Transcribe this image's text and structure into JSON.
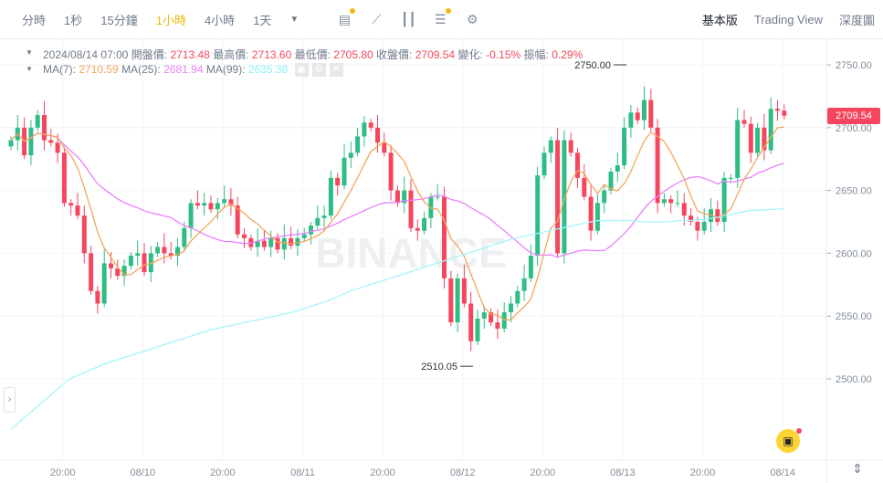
{
  "toolbar": {
    "intervals": [
      "分時",
      "1秒",
      "15分鐘",
      "1小時",
      "4小時",
      "1天"
    ],
    "active_interval": "1小時",
    "more_icon": "caret-down-icon",
    "tools": [
      "indicator-icon",
      "drawing-icon",
      "candle-type-icon",
      "settings-sliders-icon",
      "gear-icon"
    ],
    "views": [
      "基本版",
      "Trading View",
      "深度圖"
    ],
    "active_view": "基本版"
  },
  "info": {
    "datetime": "2024/08/14 07:00",
    "open_label": "開盤價:",
    "open": "2713.48",
    "high_label": "最高價:",
    "high": "2713.60",
    "low_label": "最低價:",
    "low": "2705.80",
    "close_label": "收盤價:",
    "close": "2709.54",
    "change_label": "變化:",
    "change": "-0.15%",
    "amp_label": "振幅:",
    "amp": "0.29%",
    "ma7_label": "MA(7):",
    "ma7": "2710.59",
    "ma25_label": "MA(25):",
    "ma25": "2681.94",
    "ma99_label": "MA(99):",
    "ma99": "2635.38"
  },
  "colors": {
    "up": "#2ebd85",
    "down": "#f6465d",
    "ma7": "#f5a55c",
    "ma25": "#ea80fc",
    "ma99": "#a5f5fa",
    "accent": "#f0b90b"
  },
  "watermark": "BINANCE",
  "current_price": "2709.54",
  "chart_data": {
    "type": "candlestick",
    "interval": "1h",
    "closes": [
      2690,
      2700,
      2678,
      2700,
      2710,
      2690,
      2688,
      2680,
      2640,
      2638,
      2630,
      2600,
      2570,
      2560,
      2592,
      2588,
      2582,
      2590,
      2598,
      2600,
      2585,
      2600,
      2605,
      2600,
      2598,
      2605,
      2620,
      2640,
      2638,
      2640,
      2635,
      2640,
      2643,
      2638,
      2615,
      2612,
      2605,
      2610,
      2605,
      2612,
      2603,
      2612,
      2606,
      2612,
      2615,
      2622,
      2628,
      2630,
      2660,
      2654,
      2676,
      2680,
      2693,
      2704,
      2700,
      2688,
      2680,
      2650,
      2640,
      2650,
      2620,
      2618,
      2628,
      2645,
      2645,
      2580,
      2545,
      2580,
      2560,
      2530,
      2548,
      2553,
      2545,
      2540,
      2553,
      2560,
      2570,
      2580,
      2598,
      2662,
      2680,
      2690,
      2600,
      2690,
      2680,
      2660,
      2645,
      2618,
      2640,
      2650,
      2665,
      2670,
      2700,
      2712,
      2706,
      2722,
      2700,
      2640,
      2643,
      2640,
      2640,
      2630,
      2625,
      2618,
      2625,
      2635,
      2625,
      2660,
      2660,
      2706,
      2703,
      2680,
      2700,
      2682,
      2715,
      2713.48,
      2709.54
    ],
    "ma99": [
      2460,
      2468,
      2476,
      2484,
      2492,
      2500,
      2504,
      2508,
      2512,
      2515,
      2518,
      2521,
      2524,
      2527,
      2530,
      2533,
      2536,
      2539,
      2541,
      2543,
      2545,
      2547,
      2549,
      2551,
      2553,
      2556,
      2559,
      2562,
      2566,
      2570,
      2573,
      2576,
      2579,
      2582,
      2585,
      2588,
      2591,
      2594,
      2597,
      2600,
      2603,
      2606,
      2609,
      2612,
      2614,
      2616,
      2618,
      2620,
      2622,
      2624,
      2626,
      2626,
      2626,
      2626,
      2625,
      2625,
      2625,
      2626,
      2626,
      2627,
      2628,
      2630,
      2632,
      2634,
      2634.5,
      2635,
      2635.38
    ],
    "annotations": [
      {
        "label": "2750.00",
        "value": 2750
      },
      {
        "label": "2510.05",
        "value": 2510.05
      }
    ],
    "y_ticks": [
      "2750.00",
      "2700.00",
      "2650.00",
      "2600.00",
      "2550.00",
      "2500.00"
    ],
    "y_tick_values": [
      2750,
      2700,
      2650,
      2600,
      2550,
      2500
    ],
    "x_ticks": [
      "20:00",
      "08/10",
      "20:00",
      "08/11",
      "20:00",
      "08/12",
      "20:00",
      "08/13",
      "20:00",
      "08/14"
    ],
    "ylim": [
      2445,
      2760
    ]
  }
}
